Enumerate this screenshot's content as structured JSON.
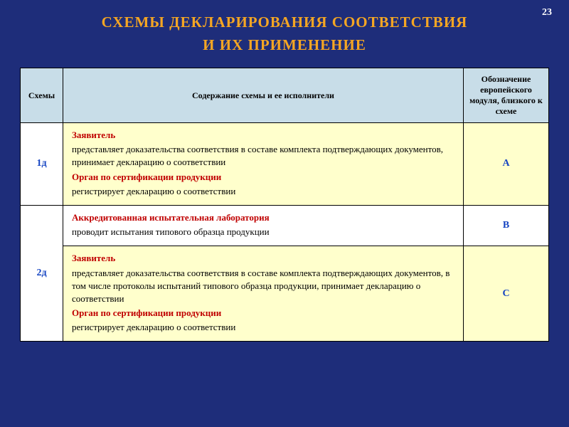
{
  "page_number": "23",
  "title_line1": "СХЕМЫ  ДЕКЛАРИРОВАНИЯ  СООТВЕТСТВИЯ",
  "title_line2": "И  ИХ  ПРИМЕНЕНИЕ",
  "headers": {
    "col1": "Схемы",
    "col2": "Содержание схемы и ее исполнители",
    "col3": "Обозначение европейского модуля, близкого к схеме"
  },
  "row1": {
    "scheme": "1д",
    "actor1": "Заявитель",
    "text1": "представляет доказательства соответствия в составе комплекта подтверждающих документов, принимает декларацию о соответствии",
    "actor2": "Орган по сертификации продукции",
    "text2": "регистрирует декларацию о соответствии",
    "module": "A"
  },
  "row2a": {
    "actor": "Аккредитованная испытательная лаборатория",
    "text": "проводит испытания типового образца продукции",
    "module": "B"
  },
  "row2b": {
    "scheme": "2д",
    "actor1": "Заявитель",
    "text1": "представляет доказательства соответствия в составе комплекта подтверждающих документов, в том числе протоколы испытаний типового образца продукции, принимает декларацию о соответствии",
    "actor2": "Орган по сертификации продукции",
    "text2": "регистрирует декларацию о соответствии",
    "module": "C"
  },
  "colors": {
    "page_bg": "#1e2d7a",
    "title_color": "#f5a623",
    "header_bg": "#c8dde8",
    "yellow_bg": "#ffffcc",
    "accent_red": "#c00000",
    "accent_blue": "#1544c2",
    "border": "#000000"
  }
}
